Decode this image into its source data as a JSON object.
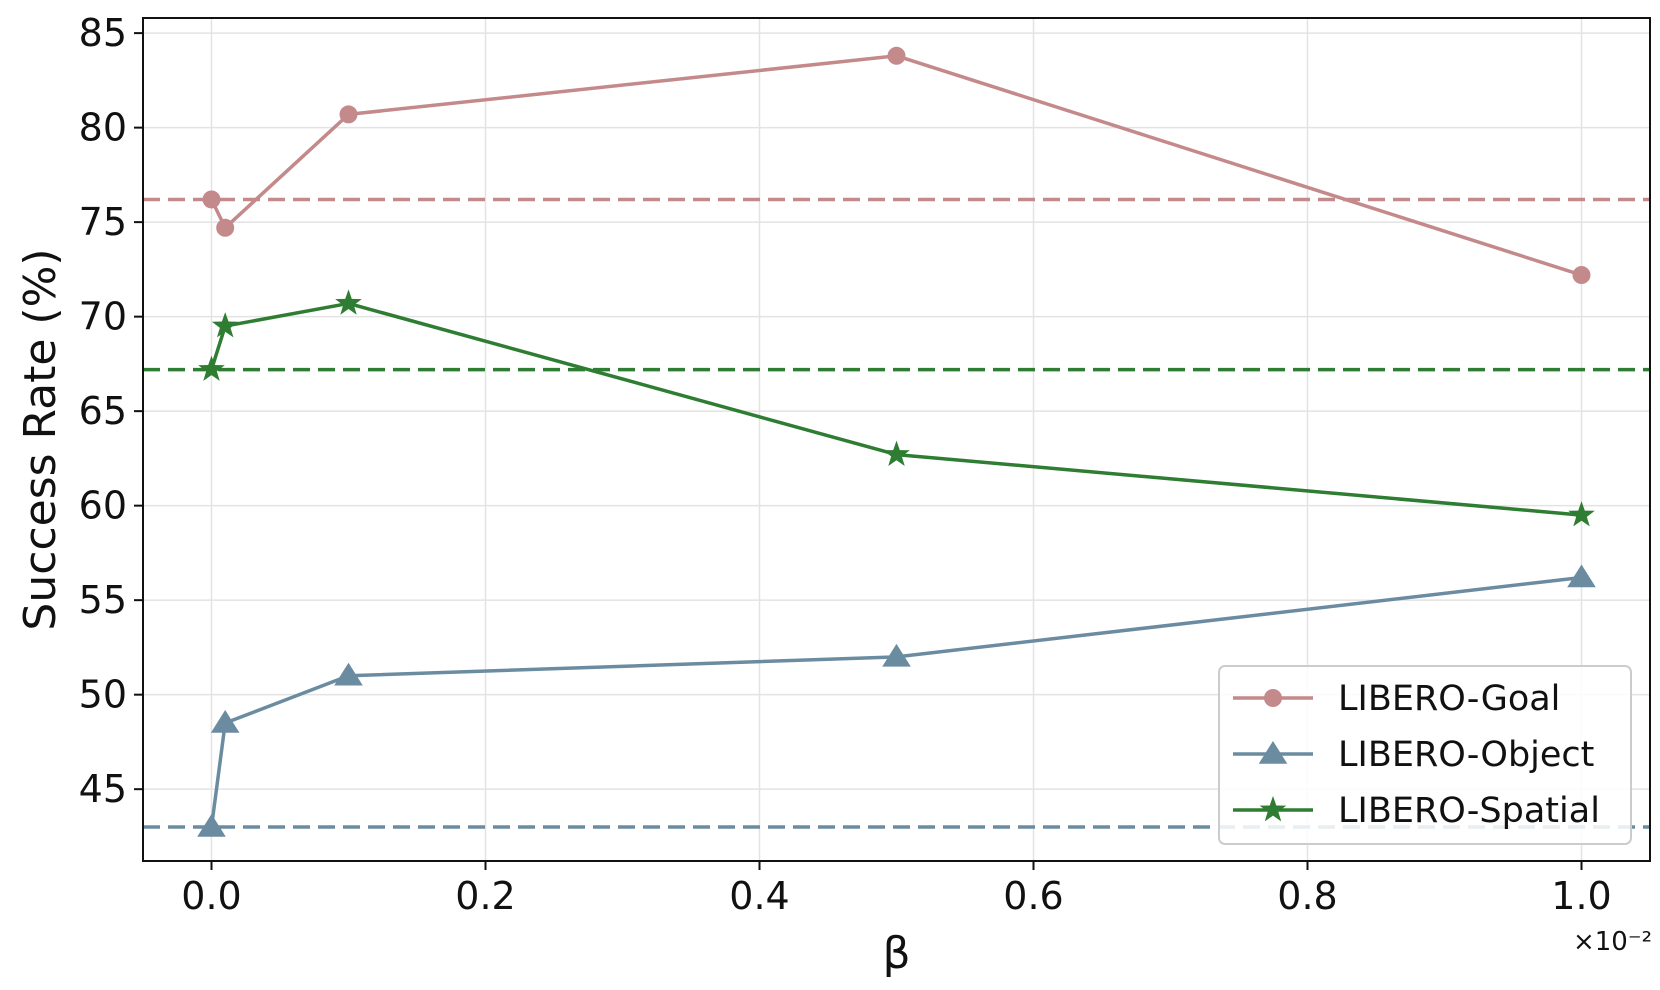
{
  "chart_data": {
    "type": "line",
    "xlabel": "β",
    "ylabel": "Success Rate (%)",
    "x_multiplier_label": "×10⁻²",
    "xlim": [
      -0.05,
      1.05
    ],
    "ylim": [
      41.2,
      85.8
    ],
    "xticks": [
      0.0,
      0.2,
      0.4,
      0.6,
      0.8,
      1.0
    ],
    "xtick_labels": [
      "0.0",
      "0.2",
      "0.4",
      "0.6",
      "0.8",
      "1.0"
    ],
    "yticks": [
      45,
      50,
      55,
      60,
      65,
      70,
      75,
      80,
      85
    ],
    "ytick_labels": [
      "45",
      "50",
      "55",
      "60",
      "65",
      "70",
      "75",
      "80",
      "85"
    ],
    "grid": true,
    "legend_position": "lower-right",
    "x": [
      0.0,
      0.01,
      0.1,
      0.5,
      1.0
    ],
    "series": [
      {
        "name": "LIBERO-Goal",
        "marker": "circle",
        "color": "#c4898a",
        "values": [
          76.2,
          74.7,
          80.7,
          83.8,
          72.2
        ],
        "baseline": 76.2
      },
      {
        "name": "LIBERO-Object",
        "marker": "triangle",
        "color": "#6b8ca0",
        "values": [
          43.0,
          48.5,
          51.0,
          52.0,
          56.2
        ],
        "baseline": 43.0
      },
      {
        "name": "LIBERO-Spatial",
        "marker": "star",
        "color": "#2e7d32",
        "values": [
          67.2,
          69.5,
          70.7,
          62.7,
          59.5
        ],
        "baseline": 67.2
      }
    ]
  }
}
